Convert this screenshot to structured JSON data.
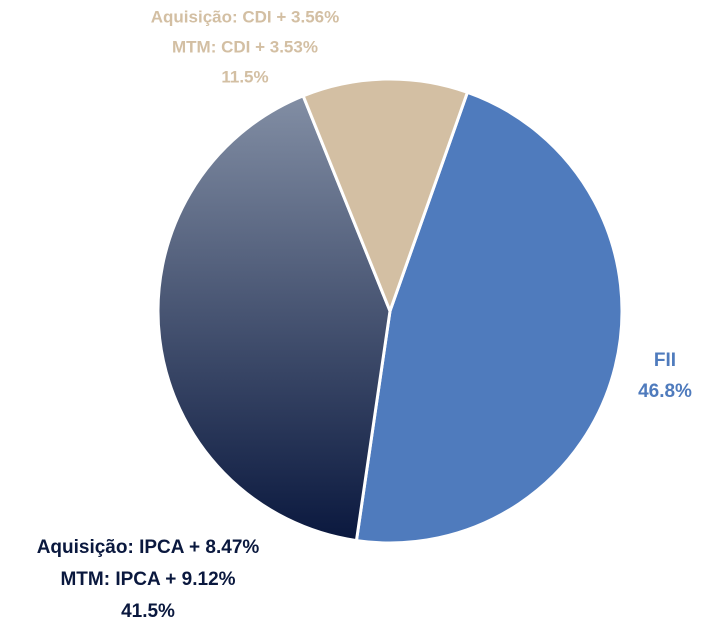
{
  "chart_data": {
    "type": "pie",
    "categories": [
      [
        "FII"
      ],
      [
        "Aquisição: IPCA + 8.47%",
        "MTM: IPCA + 9.12%"
      ],
      [
        "Aquisição: CDI + 3.56%",
        "MTM: CDI + 3.53%"
      ]
    ],
    "values": [
      46.8,
      41.5,
      11.5
    ],
    "value_labels": [
      "46.8%",
      "41.5%",
      "11.5%"
    ],
    "colors": [
      "#4f7bbd",
      {
        "gradient": [
          "#828ea4",
          "#0a183e"
        ]
      },
      "#d3bfa3"
    ]
  }
}
